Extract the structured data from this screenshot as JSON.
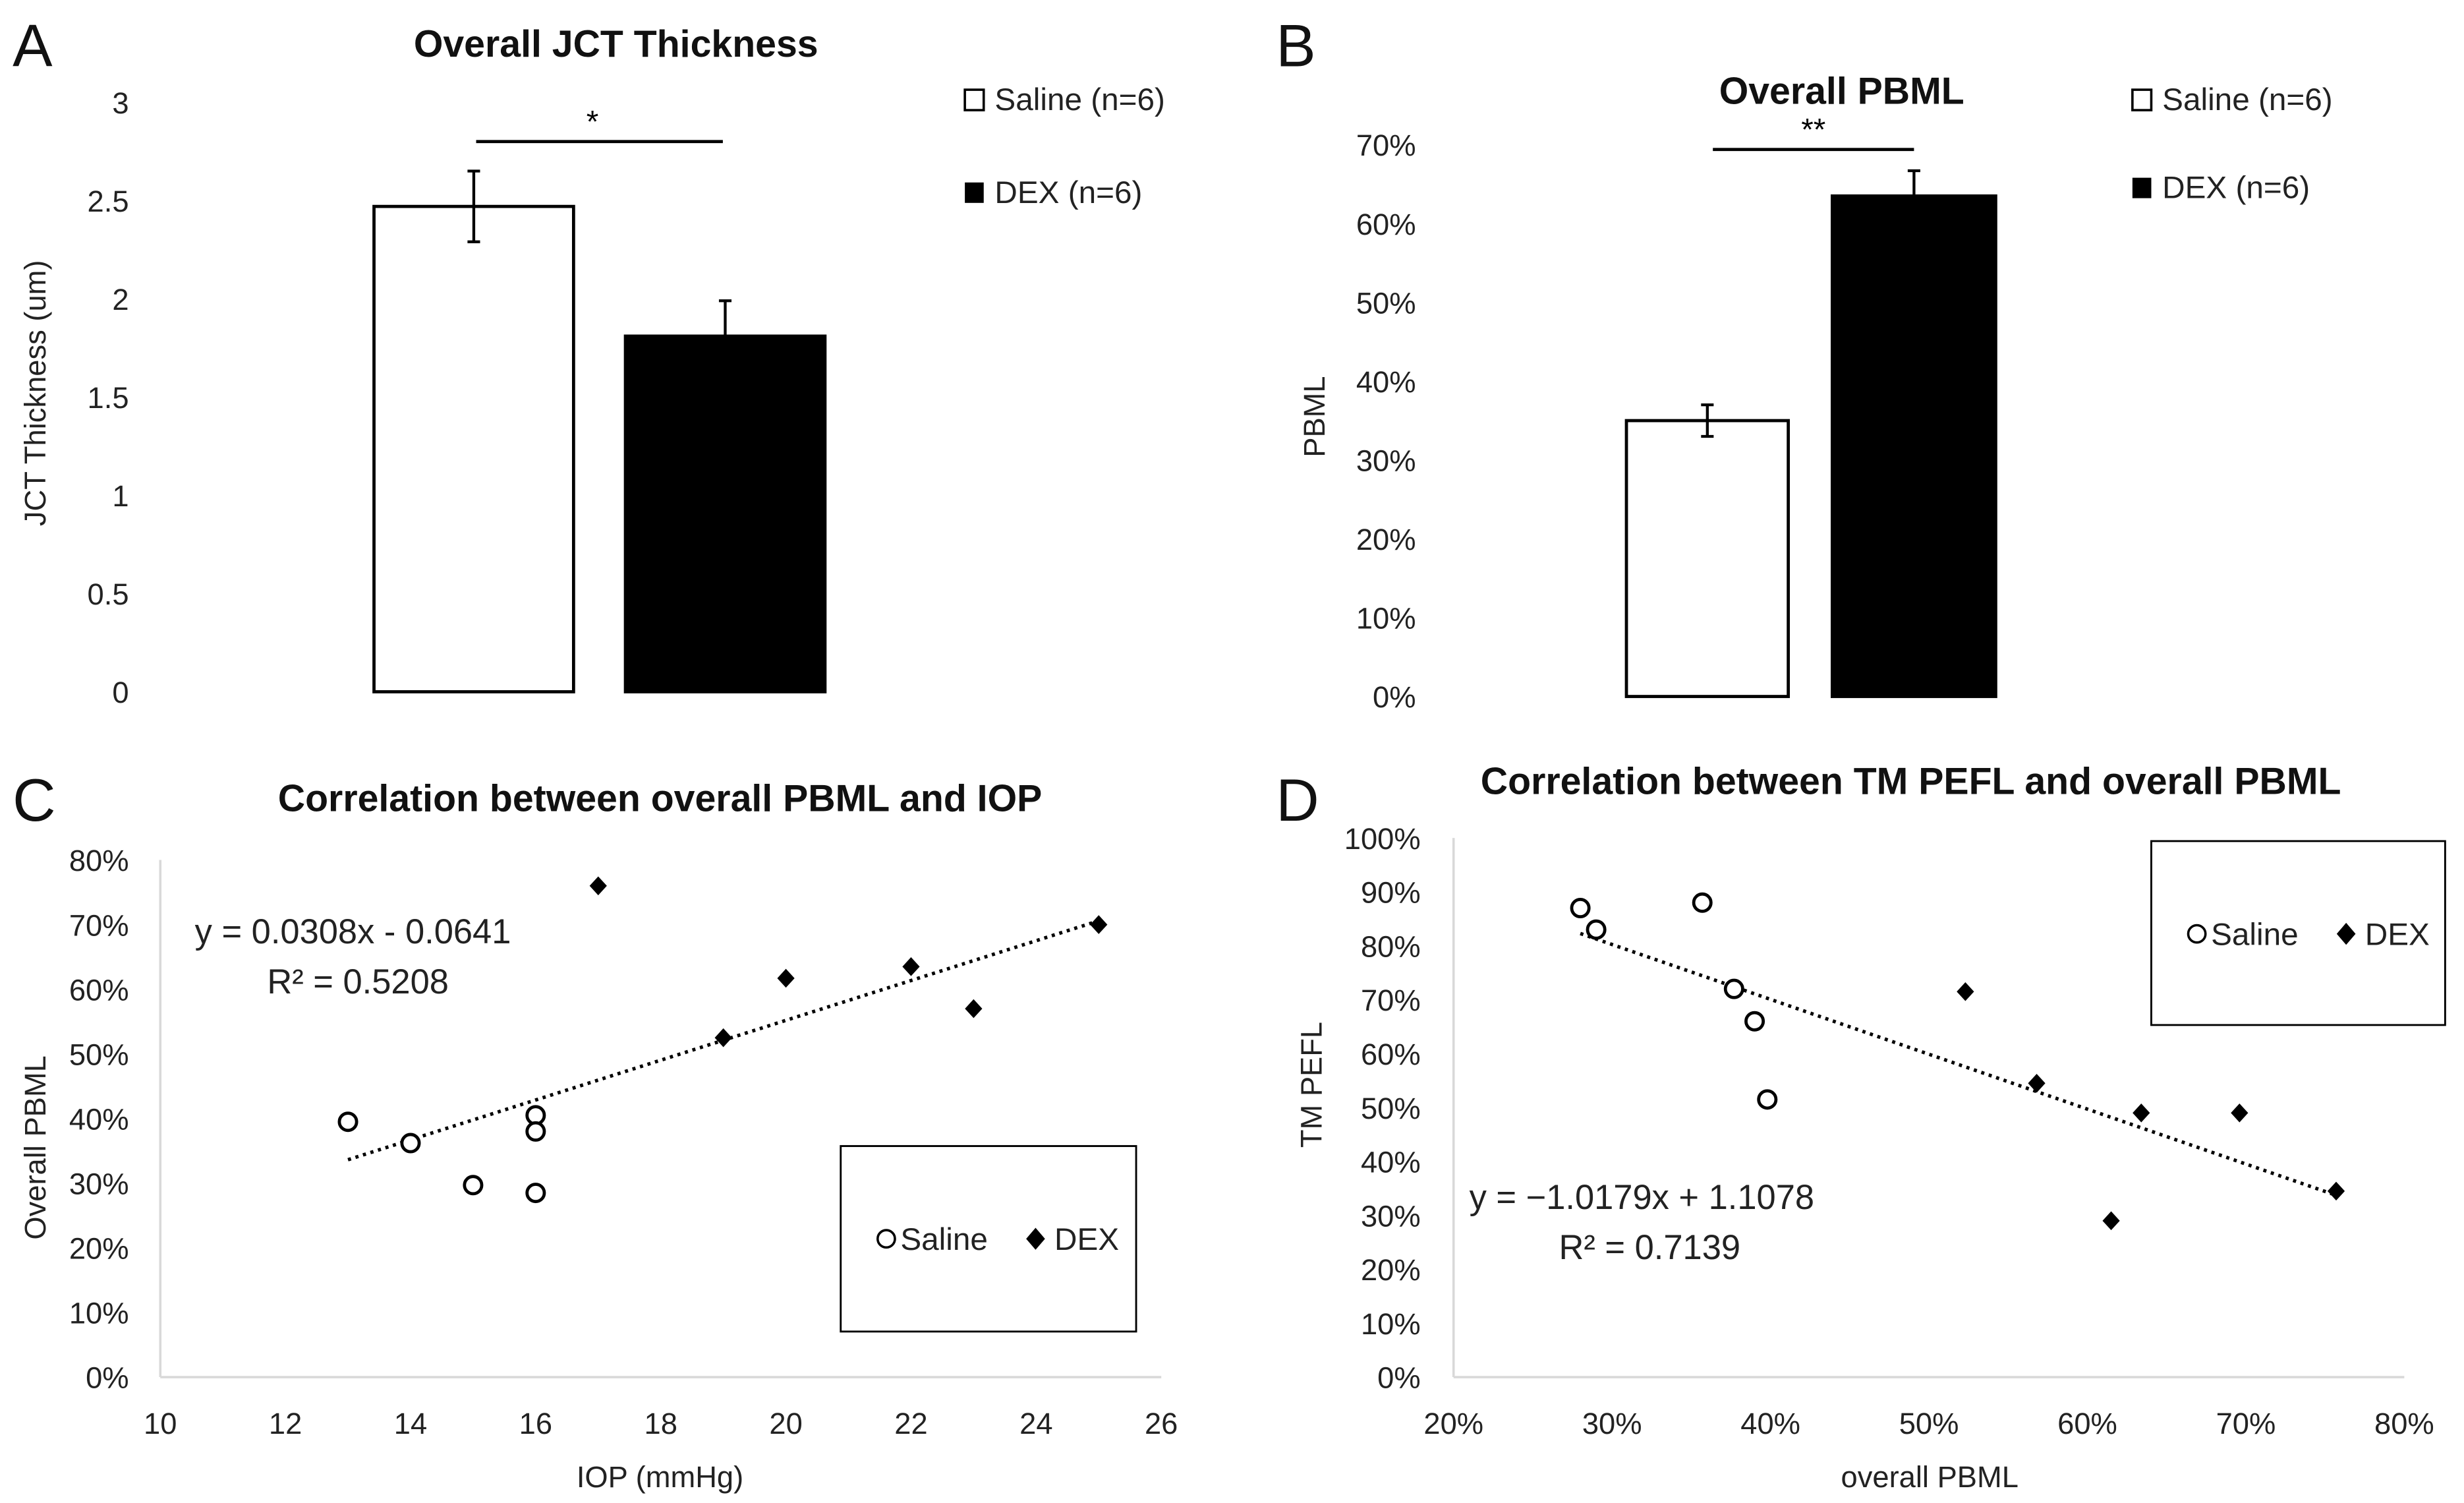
{
  "colors": {
    "saline_fill": "#ffffff",
    "dex_fill": "#000000",
    "stroke": "#000000",
    "axis": "#d9d9d9"
  },
  "chart_data": [
    {
      "panel": "A",
      "type": "bar",
      "title": "Overall JCT Thickness",
      "ylabel": "JCT Thickness (um)",
      "xlabel": "",
      "categories": [
        "Saline (n=6)",
        "DEX (n=6)"
      ],
      "values": [
        2.47,
        1.81
      ],
      "errors": [
        0.18,
        0.18
      ],
      "ylim": [
        0,
        3
      ],
      "yticks": [
        "0",
        "0.5",
        "1",
        "1.5",
        "2",
        "2.5",
        "3"
      ],
      "significance": "*",
      "legend": [
        "Saline (n=6)",
        "DEX (n=6)"
      ],
      "legend_position": "top-right",
      "grid": false
    },
    {
      "panel": "B",
      "type": "bar",
      "title": "Overall PBML",
      "ylabel": "PBML",
      "xlabel": "",
      "categories": [
        "Saline (n=6)",
        "DEX (n=6)"
      ],
      "values": [
        0.35,
        0.635
      ],
      "errors": [
        0.02,
        0.032
      ],
      "ylim": [
        0,
        0.7
      ],
      "yticks": [
        "0%",
        "10%",
        "20%",
        "30%",
        "40%",
        "50%",
        "60%",
        "70%"
      ],
      "significance": "**",
      "legend": [
        "Saline (n=6)",
        "DEX (n=6)"
      ],
      "legend_position": "top-right",
      "grid": false
    },
    {
      "panel": "C",
      "type": "scatter",
      "title": "Correlation between overall PBML and IOP",
      "xlabel": "IOP (mmHg)",
      "ylabel": "Overall PBML",
      "xlim": [
        10,
        26
      ],
      "ylim": [
        0,
        0.8
      ],
      "xticks": [
        "10",
        "12",
        "14",
        "16",
        "18",
        "20",
        "22",
        "24",
        "26"
      ],
      "yticks": [
        "0%",
        "10%",
        "20%",
        "30%",
        "40%",
        "50%",
        "60%",
        "70%",
        "80%"
      ],
      "series": [
        {
          "name": "Saline",
          "marker": "circle-open",
          "x": [
            13,
            14,
            15,
            16,
            16,
            16
          ],
          "y": [
            0.395,
            0.362,
            0.297,
            0.405,
            0.38,
            0.285
          ]
        },
        {
          "name": "DEX",
          "marker": "diamond",
          "x": [
            17,
            19,
            20,
            22,
            23,
            25
          ],
          "y": [
            0.76,
            0.525,
            0.617,
            0.635,
            0.57,
            0.7
          ]
        }
      ],
      "trendline": {
        "slope": 0.0308,
        "intercept": -0.0641,
        "x_range": [
          13,
          25
        ],
        "equation": "y = 0.0308x - 0.0641",
        "r2": "R² = 0.5208"
      },
      "legend_position": "bottom-right",
      "grid": false
    },
    {
      "panel": "D",
      "type": "scatter",
      "title": "Correlation between TM PEFL and overall PBML",
      "xlabel": "overall PBML",
      "ylabel": "TM PEFL",
      "xlim": [
        0.2,
        0.8
      ],
      "ylim": [
        0,
        1
      ],
      "xticks": [
        "20%",
        "30%",
        "40%",
        "50%",
        "60%",
        "70%",
        "80%"
      ],
      "yticks": [
        "0%",
        "10%",
        "20%",
        "30%",
        "40%",
        "50%",
        "60%",
        "70%",
        "80%",
        "90%",
        "100%"
      ],
      "series": [
        {
          "name": "Saline",
          "marker": "circle-open",
          "x": [
            0.28,
            0.29,
            0.357,
            0.377,
            0.39,
            0.398
          ],
          "y": [
            0.87,
            0.83,
            0.88,
            0.72,
            0.66,
            0.515
          ]
        },
        {
          "name": "DEX",
          "marker": "diamond",
          "x": [
            0.523,
            0.568,
            0.615,
            0.634,
            0.696,
            0.757
          ],
          "y": [
            0.715,
            0.545,
            0.29,
            0.49,
            0.49,
            0.345
          ]
        }
      ],
      "trendline": {
        "slope": -1.0179,
        "intercept": 1.1078,
        "x_range": [
          0.28,
          0.757
        ],
        "equation": "y = −1.0179x + 1.1078",
        "r2": "R² = 0.7139"
      },
      "legend_position": "top-right",
      "grid": false
    }
  ]
}
